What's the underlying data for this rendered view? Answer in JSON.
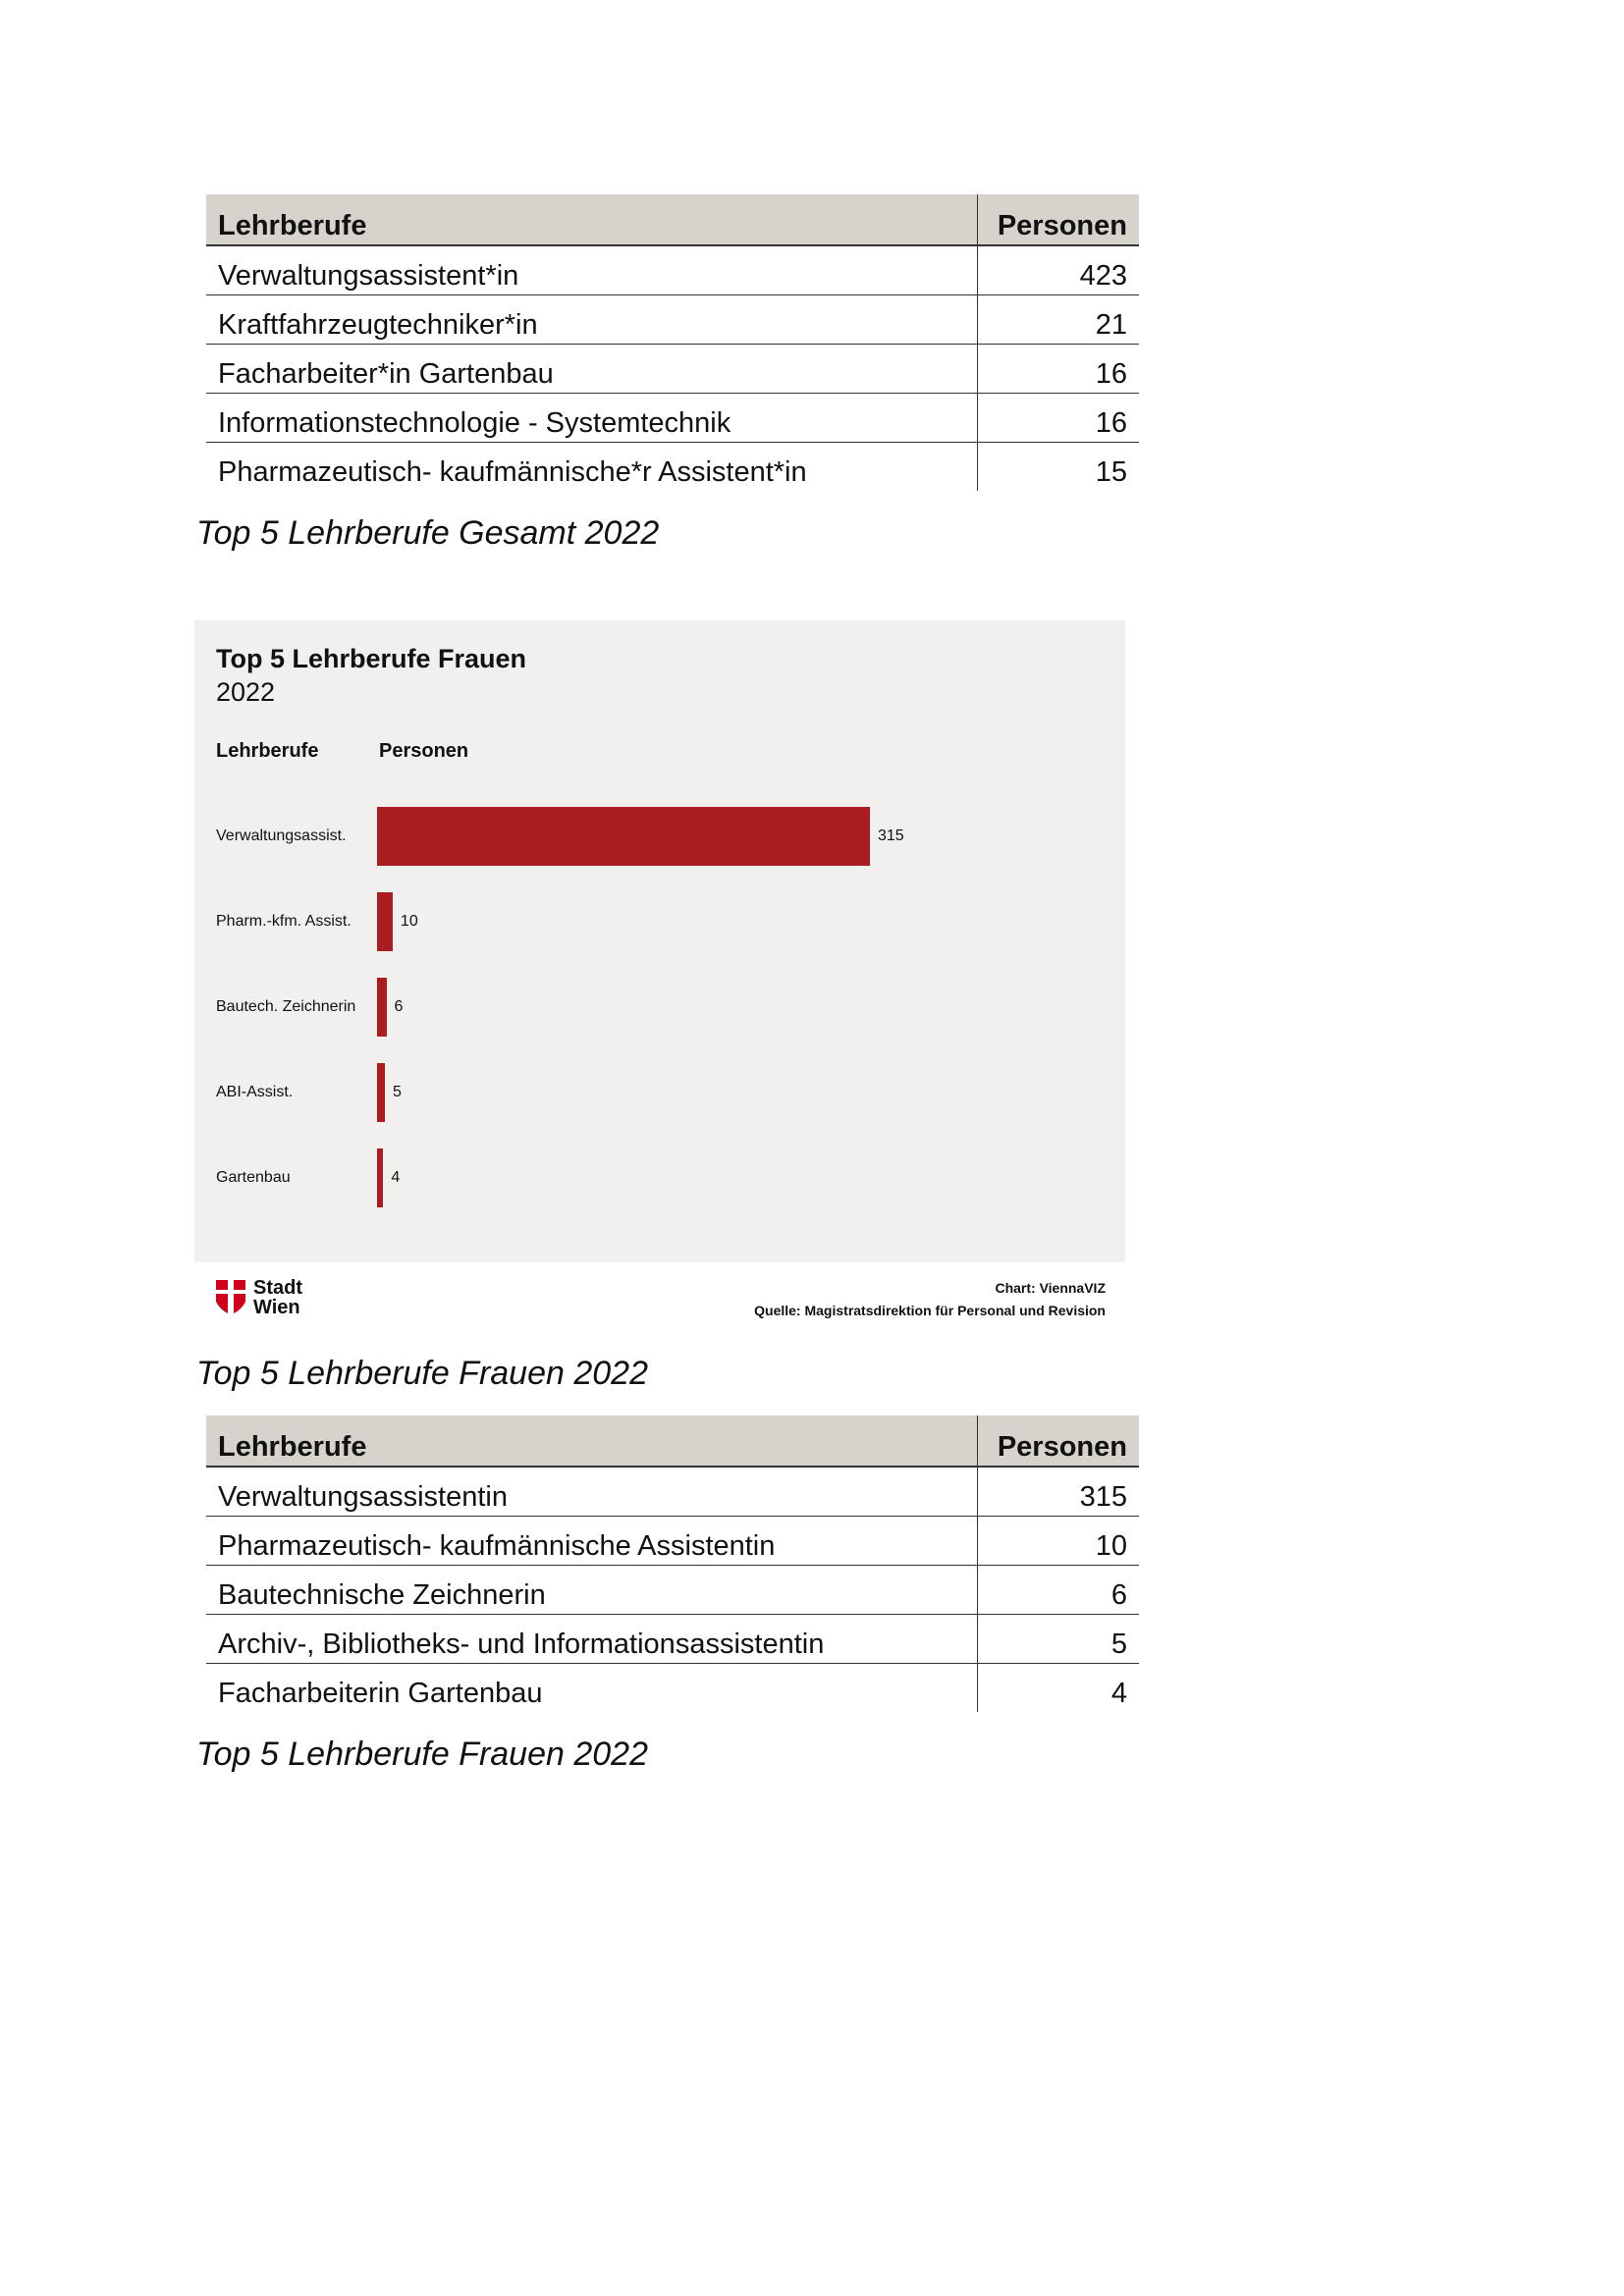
{
  "table1": {
    "headers": [
      "Lehrberufe",
      "Personen"
    ],
    "rows": [
      [
        "Verwaltungsassistent*in",
        "423"
      ],
      [
        "Kraftfahrzeugtechniker*in",
        "21"
      ],
      [
        "Facharbeiter*in Gartenbau",
        "16"
      ],
      [
        "Informationstechnologie - Systemtechnik",
        "16"
      ],
      [
        "Pharmazeutisch- kaufmännische*r Assistent*in",
        "15"
      ]
    ],
    "caption": "Top 5 Lehrberufe Gesamt 2022"
  },
  "chart_data": {
    "type": "bar",
    "orientation": "horizontal",
    "title": "Top 5 Lehrberufe Frauen",
    "subtitle": "2022",
    "xlabel": "Personen",
    "ylabel": "Lehrberufe",
    "categories": [
      "Verwaltungsassist.",
      "Pharm.-kfm. Assist.",
      "Bautech. Zeichnerin",
      "ABI-Assist.",
      "Gartenbau"
    ],
    "values": [
      315,
      10,
      6,
      5,
      4
    ],
    "color": "#ab1e1f",
    "credit": "Chart: ViennaVIZ",
    "source": "Quelle: Magistratsdirektion für Personal und Revision",
    "logo_text": [
      "Stadt",
      "Wien"
    ]
  },
  "caption2": "Top 5 Lehrberufe Frauen 2022",
  "table2": {
    "headers": [
      "Lehrberufe",
      "Personen"
    ],
    "rows": [
      [
        "Verwaltungsassistentin",
        "315"
      ],
      [
        "Pharmazeutisch- kaufmännische Assistentin",
        "10"
      ],
      [
        "Bautechnische Zeichnerin",
        "6"
      ],
      [
        "Archiv-, Bibliotheks- und Informationsassistentin",
        "5"
      ],
      [
        "Facharbeiterin Gartenbau",
        "4"
      ]
    ],
    "caption": "Top 5 Lehrberufe Frauen 2022"
  }
}
